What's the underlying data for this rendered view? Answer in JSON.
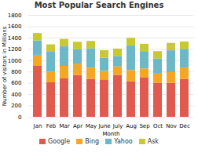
{
  "chart_data": {
    "type": "bar",
    "stacked": true,
    "title": "Most Popular Search Engines",
    "xlabel": "Month",
    "ylabel": "Number of visitors in Millions",
    "categories": [
      "Jan",
      "Feb",
      "Mar",
      "Apr",
      "May",
      "June",
      "July",
      "Aug",
      "Sep",
      "Oct",
      "Nov",
      "Dec"
    ],
    "series": [
      {
        "name": "Google",
        "color": "#e05a4f",
        "values": [
          900,
          610,
          680,
          740,
          670,
          660,
          740,
          630,
          700,
          600,
          600,
          670
        ]
      },
      {
        "name": "Bing",
        "color": "#f5a623",
        "values": [
          195,
          185,
          220,
          200,
          195,
          150,
          150,
          195,
          155,
          175,
          190,
          200
        ]
      },
      {
        "name": "Yahoo",
        "color": "#6cb8c6",
        "values": [
          255,
          355,
          345,
          255,
          345,
          235,
          185,
          440,
          305,
          255,
          385,
          330
        ]
      },
      {
        "name": "Ask",
        "color": "#c8c830",
        "values": [
          130,
          130,
          130,
          130,
          130,
          130,
          130,
          130,
          130,
          130,
          130,
          130
        ]
      }
    ],
    "ylim": [
      0,
      1800
    ],
    "yticks": [
      0,
      200,
      400,
      600,
      800,
      1000,
      1200,
      1400,
      1600,
      1800
    ],
    "grid": true,
    "legend": "bottom"
  }
}
